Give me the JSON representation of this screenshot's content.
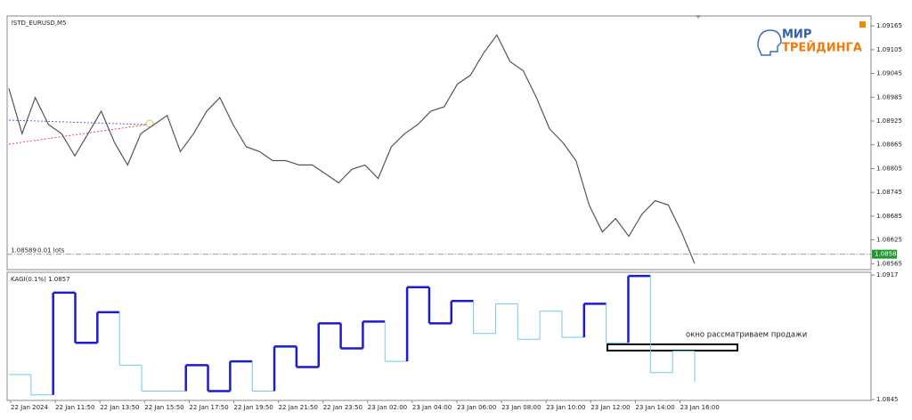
{
  "symbol": "!STD_EURUSD,M5",
  "logo": {
    "line1": "МИР",
    "line2": "ТРЕЙДИНГА"
  },
  "position_label": "0.01 lots",
  "price": {
    "ylim": [
      1.0855,
      1.0919
    ],
    "yticks": [
      1.09165,
      1.09105,
      1.09045,
      1.08985,
      1.08925,
      1.08865,
      1.08805,
      1.08745,
      1.08685,
      1.08625,
      1.08565
    ],
    "current": 1.08589,
    "color": "#555555",
    "values": [
      1.09007,
      1.08893,
      1.08984,
      1.08916,
      1.08893,
      1.08837,
      1.08893,
      1.0895,
      1.08871,
      1.08814,
      1.08893,
      1.08916,
      1.08939,
      1.08848,
      1.08893,
      1.0895,
      1.08984,
      1.08916,
      1.0886,
      1.08848,
      1.08825,
      1.08825,
      1.08814,
      1.08814,
      1.08792,
      1.08769,
      1.08803,
      1.08814,
      1.0878,
      1.0886,
      1.08893,
      1.08916,
      1.0895,
      1.08961,
      1.09018,
      1.09041,
      1.09097,
      1.09142,
      1.09075,
      1.09052,
      1.08984,
      1.08905,
      1.08871,
      1.08825,
      1.08713,
      1.08645,
      1.08679,
      1.08634,
      1.0869,
      1.08724,
      1.08713,
      1.08645,
      1.08565
    ]
  },
  "kagi": {
    "title": "KAGI(0.1%) 1.0857",
    "ylim": [
      1.08445,
      1.09186
    ],
    "yticks": [
      1.0917,
      1.0845
    ],
    "thick_color": "#1c1ccf",
    "thin_color": "#6ec6f0",
    "levels": [
      1.08595,
      1.08477,
      1.09068,
      1.08778,
      1.08955,
      1.08649,
      1.08499,
      1.08499,
      1.08649,
      1.08499,
      1.08671,
      1.08499,
      1.08757,
      1.08638,
      1.08891,
      1.08746,
      1.08901,
      1.08671,
      1.091,
      1.08891,
      1.0902,
      1.08832,
      1.09004,
      1.08799,
      1.08961,
      1.0881,
      1.09004,
      1.08778,
      1.09165,
      1.08606,
      1.0873,
      1.08552
    ],
    "thick": [
      false,
      false,
      true,
      true,
      true,
      false,
      false,
      false,
      true,
      true,
      true,
      false,
      true,
      true,
      true,
      true,
      true,
      false,
      true,
      true,
      true,
      false,
      false,
      false,
      false,
      false,
      true,
      false,
      true,
      false,
      false,
      false
    ]
  },
  "annotation": "окно рассматриваем продажи",
  "time_labels": [
    "22 Jan 2024",
    "22 Jan 11:50",
    "22 Jan 13:50",
    "22 Jan 15:50",
    "22 Jan 17:50",
    "22 Jan 19:50",
    "22 Jan 21:50",
    "22 Jan 23:50",
    "23 Jan 02:00",
    "23 Jan 04:00",
    "23 Jan 06:00",
    "23 Jan 08:00",
    "23 Jan 10:00",
    "23 Jan 12:00",
    "23 Jan 14:00",
    "23 Jan 16:00"
  ]
}
